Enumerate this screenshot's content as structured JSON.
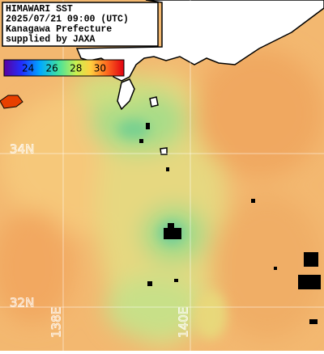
{
  "header": {
    "lines": [
      "HIMAWARI SST",
      "2025/07/21 09:00 (UTC)",
      "Kanagawa Prefecture",
      "supplied by JAXA"
    ]
  },
  "colorbar": {
    "range": [
      22,
      32
    ],
    "ticks": [
      24,
      26,
      28,
      30
    ]
  },
  "grid": {
    "lat_labels": [
      "34N",
      "32N"
    ],
    "lon_labels": [
      "138E",
      "140E"
    ]
  }
}
